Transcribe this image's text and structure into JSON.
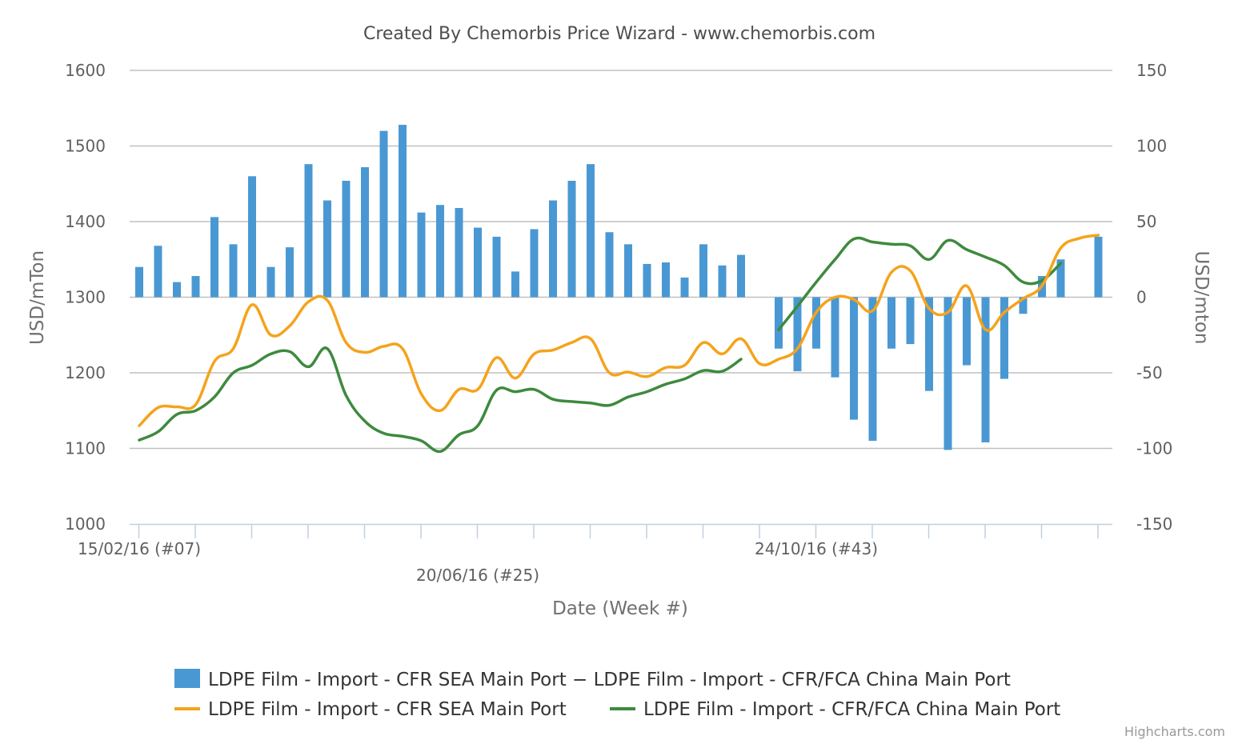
{
  "chart_data": {
    "type": "bar+line",
    "title": "Created By Chemorbis Price Wizard - www.chemorbis.com",
    "xlabel": "Date (Week #)",
    "ylabel_left": "USD/mTon",
    "ylabel_right": "USD/mton",
    "ylim_left": [
      1000,
      1600
    ],
    "ylim_right": [
      -150,
      150
    ],
    "yticks_left": [
      "1600",
      "1500",
      "1400",
      "1300",
      "1200",
      "1100",
      "1000"
    ],
    "yticks_right": [
      "150",
      "100",
      "50",
      "0",
      "-50",
      "-100",
      "-150"
    ],
    "x_tick_labels": [
      {
        "week": 7,
        "label": "15/02/16 (#07)"
      },
      {
        "week": 25,
        "label": "20/06/16 (#25)"
      },
      {
        "week": 43,
        "label": "24/10/16 (#43)"
      }
    ],
    "x_weeks": [
      7,
      60
    ],
    "grid": true,
    "legend_position": "bottom",
    "credits": "Highcharts.com",
    "colors": {
      "bar": "#4a98d3",
      "sea": "#f5a31b",
      "china": "#3e8a3e",
      "grid": "#c0c0c0",
      "axis": "#c0d0e0"
    },
    "series": [
      {
        "name": "LDPE Film - Import - CFR SEA Main Port − LDPE Film - Import - CFR/FCA China Main Port",
        "type": "bar",
        "axis": "right",
        "points": [
          [
            7,
            20
          ],
          [
            8,
            34
          ],
          [
            9,
            10
          ],
          [
            10,
            14
          ],
          [
            11,
            53
          ],
          [
            12,
            35
          ],
          [
            13,
            80
          ],
          [
            14,
            20
          ],
          [
            15,
            33
          ],
          [
            16,
            88
          ],
          [
            17,
            64
          ],
          [
            18,
            77
          ],
          [
            19,
            86
          ],
          [
            20,
            110
          ],
          [
            21,
            114
          ],
          [
            22,
            56
          ],
          [
            23,
            61
          ],
          [
            24,
            59
          ],
          [
            25,
            46
          ],
          [
            26,
            40
          ],
          [
            27,
            17
          ],
          [
            28,
            45
          ],
          [
            29,
            64
          ],
          [
            30,
            77
          ],
          [
            31,
            88
          ],
          [
            32,
            43
          ],
          [
            33,
            35
          ],
          [
            34,
            22
          ],
          [
            35,
            23
          ],
          [
            36,
            13
          ],
          [
            37,
            35
          ],
          [
            38,
            21
          ],
          [
            39,
            28
          ],
          [
            41,
            -34
          ],
          [
            42,
            -49
          ],
          [
            43,
            -34
          ],
          [
            44,
            -53
          ],
          [
            45,
            -81
          ],
          [
            46,
            -95
          ],
          [
            47,
            -34
          ],
          [
            48,
            -31
          ],
          [
            49,
            -62
          ],
          [
            50,
            -101
          ],
          [
            51,
            -45
          ],
          [
            52,
            -96
          ],
          [
            53,
            -54
          ],
          [
            54,
            -11
          ],
          [
            55,
            14
          ],
          [
            56,
            25
          ],
          [
            58,
            40
          ]
        ]
      },
      {
        "name": "LDPE Film - Import - CFR SEA Main Port",
        "type": "line",
        "axis": "left",
        "points": [
          [
            7,
            1130
          ],
          [
            8,
            1154
          ],
          [
            9,
            1155
          ],
          [
            10,
            1158
          ],
          [
            11,
            1215
          ],
          [
            12,
            1232
          ],
          [
            13,
            1290
          ],
          [
            14,
            1250
          ],
          [
            15,
            1262
          ],
          [
            16,
            1294
          ],
          [
            17,
            1296
          ],
          [
            18,
            1240
          ],
          [
            19,
            1227
          ],
          [
            20,
            1235
          ],
          [
            21,
            1232
          ],
          [
            22,
            1172
          ],
          [
            23,
            1150
          ],
          [
            24,
            1178
          ],
          [
            25,
            1178
          ],
          [
            26,
            1220
          ],
          [
            27,
            1193
          ],
          [
            28,
            1225
          ],
          [
            29,
            1230
          ],
          [
            30,
            1240
          ],
          [
            31,
            1245
          ],
          [
            32,
            1200
          ],
          [
            33,
            1201
          ],
          [
            34,
            1195
          ],
          [
            35,
            1207
          ],
          [
            36,
            1210
          ],
          [
            37,
            1240
          ],
          [
            38,
            1225
          ],
          [
            39,
            1245
          ],
          [
            40,
            1212
          ],
          [
            41,
            1218
          ],
          [
            42,
            1232
          ],
          [
            43,
            1280
          ],
          [
            44,
            1300
          ],
          [
            45,
            1297
          ],
          [
            46,
            1282
          ],
          [
            47,
            1333
          ],
          [
            48,
            1335
          ],
          [
            49,
            1285
          ],
          [
            50,
            1280
          ],
          [
            51,
            1315
          ],
          [
            52,
            1257
          ],
          [
            53,
            1280
          ],
          [
            54,
            1298
          ],
          [
            55,
            1315
          ],
          [
            56,
            1365
          ],
          [
            57,
            1378
          ],
          [
            58,
            1382
          ]
        ]
      },
      {
        "name": "LDPE Film - Import - CFR/FCA China Main Port",
        "type": "line",
        "axis": "left",
        "points": [
          [
            7,
            1111
          ],
          [
            8,
            1122
          ],
          [
            9,
            1145
          ],
          [
            10,
            1150
          ],
          [
            11,
            1168
          ],
          [
            12,
            1200
          ],
          [
            13,
            1210
          ],
          [
            14,
            1225
          ],
          [
            15,
            1228
          ],
          [
            16,
            1208
          ],
          [
            17,
            1232
          ],
          [
            18,
            1170
          ],
          [
            19,
            1136
          ],
          [
            20,
            1120
          ],
          [
            21,
            1116
          ],
          [
            22,
            1110
          ],
          [
            23,
            1096
          ],
          [
            24,
            1118
          ],
          [
            25,
            1130
          ],
          [
            26,
            1177
          ],
          [
            27,
            1175
          ],
          [
            28,
            1178
          ],
          [
            29,
            1165
          ],
          [
            30,
            1162
          ],
          [
            31,
            1160
          ],
          [
            32,
            1157
          ],
          [
            33,
            1168
          ],
          [
            34,
            1175
          ],
          [
            35,
            1185
          ],
          [
            36,
            1192
          ],
          [
            37,
            1203
          ],
          [
            38,
            1202
          ],
          [
            39,
            1218
          ],
          [
            40,
            null
          ],
          [
            41,
            1257
          ],
          [
            42,
            1288
          ],
          [
            43,
            1320
          ],
          [
            44,
            1350
          ],
          [
            45,
            1377
          ],
          [
            46,
            1373
          ],
          [
            47,
            1370
          ],
          [
            48,
            1368
          ],
          [
            49,
            1350
          ],
          [
            50,
            1375
          ],
          [
            51,
            1363
          ],
          [
            52,
            1353
          ],
          [
            53,
            1342
          ],
          [
            54,
            1320
          ],
          [
            55,
            1322
          ],
          [
            56,
            1345
          ]
        ]
      }
    ]
  }
}
